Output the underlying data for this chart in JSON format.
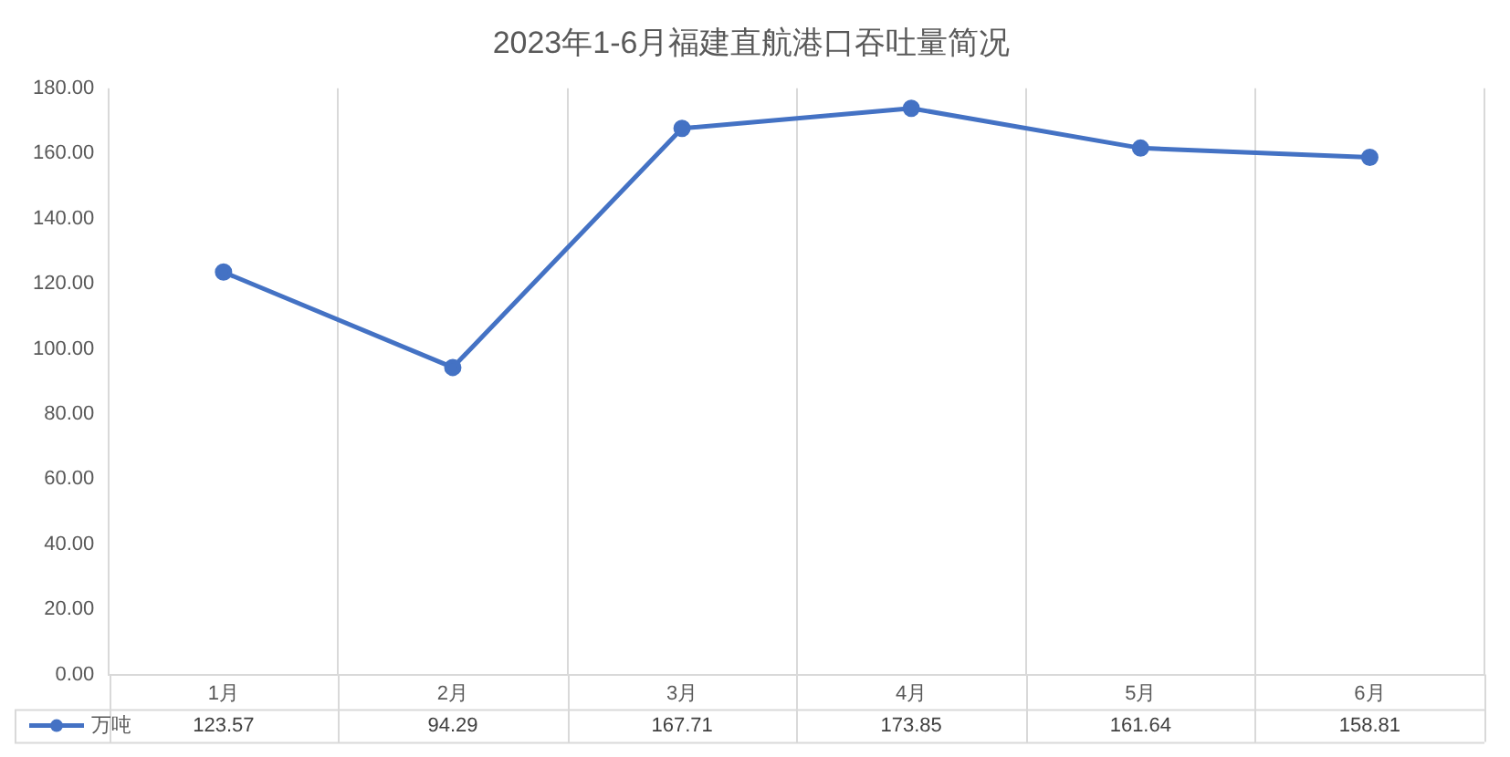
{
  "chart_data": {
    "type": "line",
    "title": "2023年1-6月福建直航港口吞吐量简况",
    "categories": [
      "1月",
      "2月",
      "3月",
      "4月",
      "5月",
      "6月"
    ],
    "series": [
      {
        "name": "万吨",
        "color": "#4472c4",
        "values": [
          123.57,
          94.29,
          167.71,
          173.85,
          161.64,
          158.81
        ]
      }
    ],
    "ylim": [
      0,
      180
    ],
    "yticks": [
      {
        "value": 0,
        "label": "0.00"
      },
      {
        "value": 20,
        "label": "20.00"
      },
      {
        "value": 40,
        "label": "40.00"
      },
      {
        "value": 60,
        "label": "60.00"
      },
      {
        "value": 80,
        "label": "80.00"
      },
      {
        "value": 100,
        "label": "100.00"
      },
      {
        "value": 120,
        "label": "120.00"
      },
      {
        "value": 140,
        "label": "140.00"
      },
      {
        "value": 160,
        "label": "160.00"
      },
      {
        "value": 180,
        "label": "180.00"
      }
    ],
    "grid": "x",
    "legend": "bottom",
    "marker": "circle",
    "line_style": "solid",
    "data_labels": true
  }
}
